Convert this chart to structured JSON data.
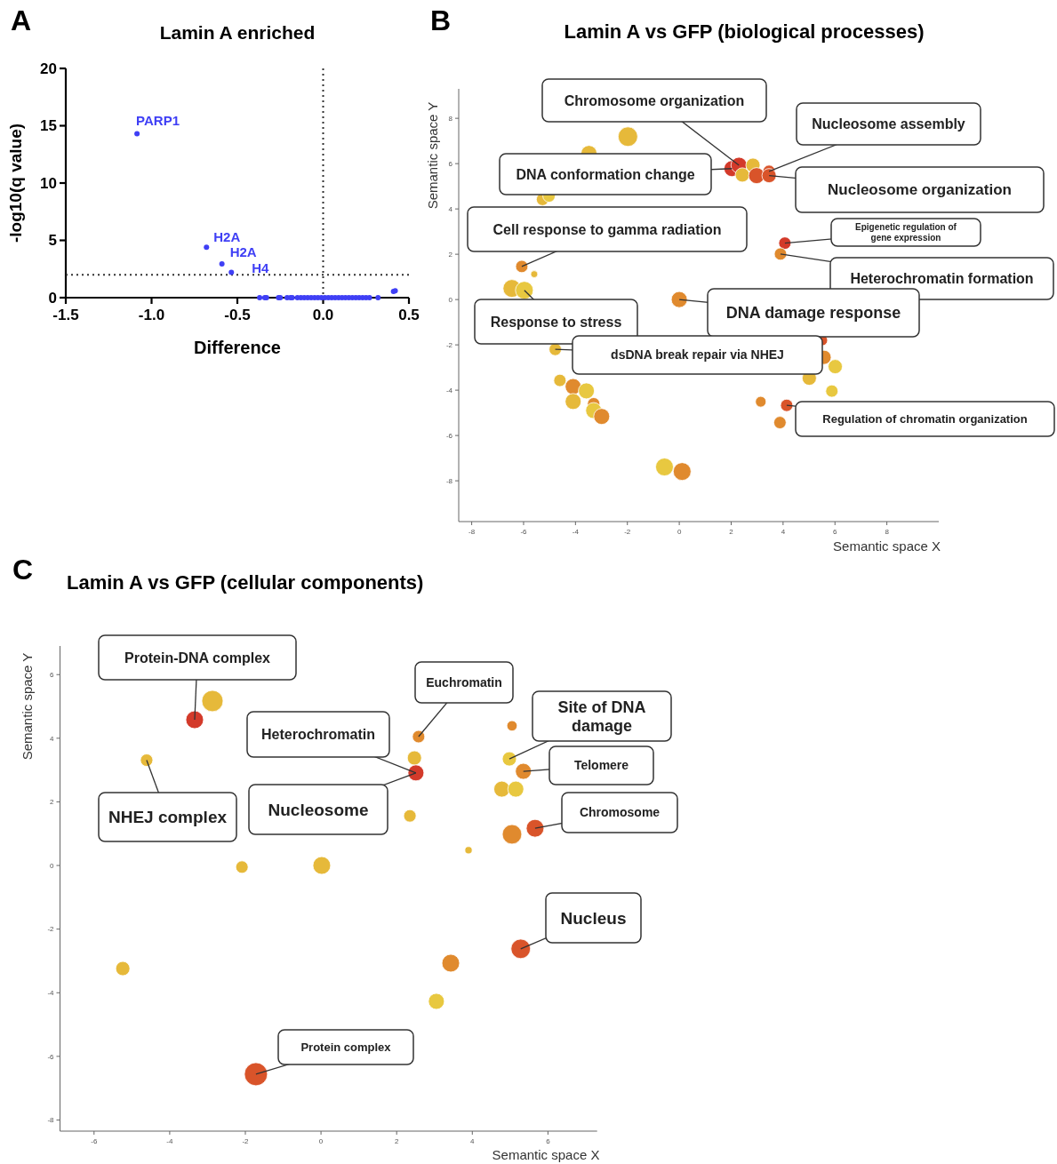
{
  "chart_data": [
    {
      "type": "scatter",
      "title": "Lamin A enriched",
      "xlabel": "Difference",
      "ylabel": "-log10(q value)",
      "marker": "circle",
      "color": "#3f3ff5",
      "x": [
        -1.085,
        -0.68,
        -0.59,
        -0.535,
        -0.37,
        -0.34,
        -0.33,
        -0.26,
        -0.25,
        -0.21,
        -0.19,
        -0.18,
        -0.15,
        -0.13,
        -0.11,
        -0.09,
        -0.07,
        -0.05,
        -0.03,
        -0.01,
        0.01,
        0.03,
        0.05,
        0.07,
        0.09,
        0.11,
        0.13,
        0.15,
        0.17,
        0.19,
        0.21,
        0.23,
        0.25,
        0.27,
        0.32,
        0.41,
        0.42
      ],
      "values": [
        14.3,
        4.4,
        2.95,
        2.2,
        0,
        0,
        0,
        0,
        0,
        0,
        0,
        0,
        0,
        0,
        0,
        0,
        0,
        0,
        0,
        0,
        0,
        0,
        0,
        0,
        0,
        0,
        0,
        0,
        0,
        0,
        0,
        0,
        0,
        0,
        0,
        0.55,
        0.6
      ],
      "xlim": [
        -1.5,
        0.5
      ],
      "ylim": [
        0,
        20
      ],
      "xticks": [
        {
          "value": -1.5,
          "label": "-1.5"
        },
        {
          "value": -1,
          "label": "-1.0"
        },
        {
          "value": -0.5,
          "label": "-0.5"
        },
        {
          "value": 0,
          "label": "0.0"
        },
        {
          "value": 0.5,
          "label": "0.5"
        }
      ],
      "yticks": [
        0,
        5,
        10,
        15,
        20
      ],
      "ref_lines": [
        {
          "axis": "x",
          "value": 0,
          "line_style": "dotted"
        },
        {
          "axis": "y",
          "value": 2,
          "line_style": "dotted"
        }
      ],
      "annotations": [
        "A",
        {
          "text": "PARP1",
          "x": -1.085,
          "y": 14.3
        },
        {
          "text": "H2A",
          "x": -0.68,
          "y": 4.4
        },
        {
          "text": "H2A",
          "x": -0.59,
          "y": 2.95
        },
        {
          "text": "H4",
          "x": -0.535,
          "y": 2.2
        }
      ]
    },
    {
      "type": "bubble",
      "title": "Lamin A vs GFP (biological processes)",
      "xlabel": "Semantic space X",
      "ylabel": "Semantic space Y",
      "x": [
        -1.98,
        -3.48,
        -5.27,
        -5.02,
        -6.07,
        -5.59,
        -6.45,
        -5.97,
        0,
        -4.78,
        -4.6,
        -4.09,
        -3.58,
        -3.3,
        -4.09,
        -3.3,
        -2.99,
        -0.57,
        0.11,
        2.03,
        2.3,
        2.84,
        2.43,
        2.98,
        3.46,
        3.46,
        4.07,
        3.9,
        5.51,
        5.58,
        6.01,
        5.01,
        5.88,
        3.14,
        4.14,
        3.88
      ],
      "values": [
        7.19,
        6.45,
        4.42,
        4.57,
        1.46,
        1.12,
        0.49,
        0.41,
        0,
        -2.2,
        -3.57,
        -3.84,
        -4.03,
        -4.6,
        -4.5,
        -4.9,
        -5.16,
        -7.39,
        -7.59,
        5.78,
        5.93,
        5.93,
        5.5,
        5.47,
        5.66,
        5.47,
        2.49,
        2.01,
        -1.8,
        -2.55,
        -2.96,
        -3.47,
        -4.04,
        -4.51,
        -4.67,
        -5.43
      ],
      "sizes": [
        1,
        0.67,
        0.4,
        0.4,
        0.4,
        0.13,
        0.83,
        0.83,
        0.67,
        0.4,
        0.4,
        0.67,
        0.67,
        0.4,
        0.67,
        0.67,
        0.67,
        0.83,
        0.83,
        0.67,
        0.67,
        0.53,
        0.53,
        0.67,
        0.4,
        0.53,
        0.4,
        0.4,
        0.3,
        0.53,
        0.53,
        0.53,
        0.4,
        0.3,
        0.4,
        0.4
      ],
      "colors": [
        "#e6b93a",
        "#e6b93a",
        "#e6b93a",
        "#e8c840",
        "#e08a2e",
        "#e6b93a",
        "#e6b93a",
        "#e8c840",
        "#e08a2e",
        "#e6b93a",
        "#e6b93a",
        "#e08a2e",
        "#e8c840",
        "#e08a2e",
        "#e6b93a",
        "#e8c840",
        "#e08a2e",
        "#e8c840",
        "#e08a2e",
        "#d33a2a",
        "#d33a2a",
        "#e6b93a",
        "#e6b93a",
        "#d9542a",
        "#d9542a",
        "#d9542a",
        "#d33a2a",
        "#e08a2e",
        "#d9542a",
        "#e08a2e",
        "#e8c840",
        "#e6b93a",
        "#e8c840",
        "#e08a2e",
        "#d9542a",
        "#e08a2e"
      ],
      "xlim": [
        -8.5,
        10
      ],
      "ylim": [
        -9.8,
        9.3
      ],
      "xticks": [
        -8,
        -6,
        -4,
        -2,
        0,
        2,
        4,
        6,
        8
      ],
      "yticks": [
        -8,
        -6,
        -4,
        -2,
        0,
        2,
        4,
        6,
        8
      ],
      "annotations": [
        "B",
        {
          "text": "Chromosome organization",
          "x": 2.3,
          "y": 5.93
        },
        {
          "text": "Nucleosome assembly",
          "x": 3.46,
          "y": 5.66
        },
        {
          "text": "DNA conformation change",
          "x": 2.03,
          "y": 5.78
        },
        {
          "text": "Nucleosome organization",
          "x": 3.46,
          "y": 5.47
        },
        {
          "text": "Cell response to gamma radiation",
          "x": -6.07,
          "y": 1.46
        },
        {
          "text": "Epigenetic regulation of gene expression",
          "x": 4.07,
          "y": 2.49
        },
        {
          "text": "Heterochromatin formation",
          "x": 3.9,
          "y": 2.01
        },
        {
          "text": "Response to stress",
          "x": -5.97,
          "y": 0.41
        },
        {
          "text": "DNA damage response",
          "x": 0,
          "y": 0
        },
        {
          "text": "dsDNA break repair via NHEJ",
          "x": -4.78,
          "y": -2.2
        },
        {
          "text": "Regulation of chromatin organization",
          "x": 4.14,
          "y": -4.67
        }
      ]
    },
    {
      "type": "bubble",
      "title": "Lamin A vs GFP (cellular components)",
      "xlabel": "Semantic space X",
      "ylabel": "Semantic space Y",
      "x": [
        -2.87,
        -3.34,
        -4.61,
        2.58,
        2.47,
        2.51,
        2.35,
        -2.09,
        0.02,
        3.9,
        5.05,
        4.98,
        5.35,
        4.78,
        5.15,
        5.05,
        5.66,
        5.28,
        3.43,
        3.05,
        -5.24,
        -1.72
      ],
      "values": [
        5.17,
        4.58,
        3.31,
        4.05,
        3.38,
        2.91,
        1.56,
        -0.05,
        0,
        0.48,
        4.39,
        3.35,
        2.96,
        2.4,
        2.4,
        0.98,
        1.17,
        -2.62,
        -3.07,
        -4.27,
        -3.24,
        -6.56
      ],
      "sizes": [
        0.85,
        0.59,
        0.29,
        0.29,
        0.38,
        0.48,
        0.29,
        0.29,
        0.59,
        0.1,
        0.2,
        0.38,
        0.48,
        0.48,
        0.48,
        0.71,
        0.59,
        0.71,
        0.59,
        0.48,
        0.38,
        1
      ],
      "colors": [
        "#e6b93a",
        "#d33a2a",
        "#e6b93a",
        "#e08a2e",
        "#e6b93a",
        "#d33a2a",
        "#e6b93a",
        "#e6b93a",
        "#e6b93a",
        "#e6b93a",
        "#e08a2e",
        "#e8c840",
        "#e08a2e",
        "#e6b93a",
        "#e8c840",
        "#e08a2e",
        "#d9542a",
        "#d9542a",
        "#e08a2e",
        "#e8c840",
        "#e6b93a",
        "#d9542a"
      ],
      "xlim": [
        -6.9,
        7.3
      ],
      "ylim": [
        -8.35,
        6.9
      ],
      "xticks": [
        -6,
        -4,
        -2,
        0,
        2,
        4,
        6
      ],
      "yticks": [
        -8,
        -6,
        -4,
        -2,
        0,
        2,
        4,
        6
      ],
      "annotations": [
        "C",
        {
          "text": "Protein-DNA complex",
          "x": -3.34,
          "y": 4.58
        },
        {
          "text": "NHEJ complex",
          "x": -4.61,
          "y": 3.31
        },
        {
          "text": "Heterochromatin",
          "x": 2.51,
          "y": 2.91
        },
        {
          "text": "Nucleosome",
          "x": 2.51,
          "y": 2.91
        },
        {
          "text": "Euchromatin",
          "x": 2.58,
          "y": 4.05
        },
        {
          "text": "Site of DNA damage",
          "x": 4.98,
          "y": 3.35
        },
        {
          "text": "Telomere",
          "x": 5.35,
          "y": 2.96
        },
        {
          "text": "Chromosome",
          "x": 5.66,
          "y": 1.17
        },
        {
          "text": "Nucleus",
          "x": 5.28,
          "y": -2.62
        },
        {
          "text": "Protein complex",
          "x": -1.72,
          "y": -6.56
        }
      ]
    }
  ]
}
